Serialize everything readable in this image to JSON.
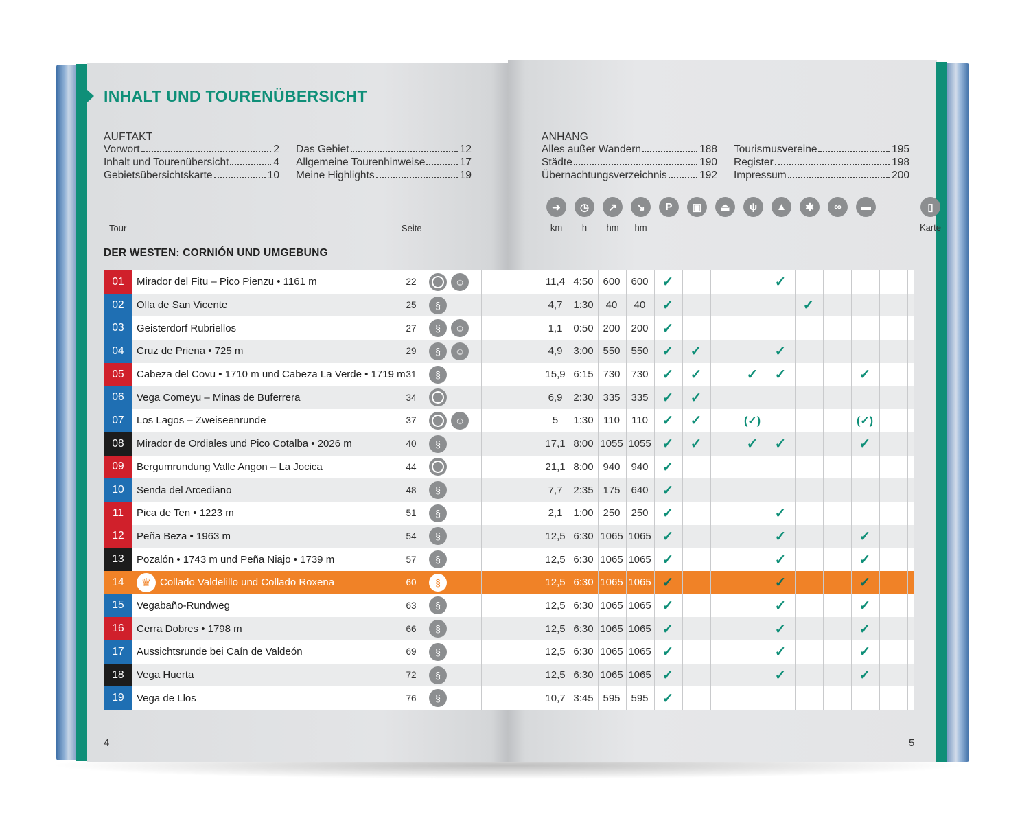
{
  "title": "INHALT UND TOURENÜBERSICHT",
  "toc_left": {
    "heading": "AUFTAKT",
    "col1": [
      {
        "label": "Vorwort",
        "page": "2"
      },
      {
        "label": "Inhalt und Tourenübersicht",
        "page": "4"
      },
      {
        "label": "Gebietsübersichtskarte",
        "page": "10"
      }
    ],
    "col2": [
      {
        "label": "Das Gebiet",
        "page": "12"
      },
      {
        "label": "Allgemeine Tourenhinweise",
        "page": "17"
      },
      {
        "label": "Meine Highlights",
        "page": "19"
      }
    ]
  },
  "toc_right": {
    "heading": "ANHANG",
    "col1": [
      {
        "label": "Alles außer Wandern",
        "page": "188"
      },
      {
        "label": "Städte",
        "page": "190"
      },
      {
        "label": "Übernachtungsverzeichnis",
        "page": "192"
      }
    ],
    "col2": [
      {
        "label": "Tourismusvereine",
        "page": "195"
      },
      {
        "label": "Register",
        "page": "198"
      },
      {
        "label": "Impressum",
        "page": "200"
      }
    ]
  },
  "col_tour": "Tour",
  "col_seite": "Seite",
  "col_karte": "Karte",
  "section_title": "DER WESTEN: CORNIÓN UND UMGEBUNG",
  "icon_headers": [
    {
      "icon": "signpost-icon",
      "glyph": "➜",
      "label": "km"
    },
    {
      "icon": "clock-icon",
      "glyph": "◷",
      "label": "h"
    },
    {
      "icon": "ascent-icon",
      "glyph": "↗",
      "label": "hm"
    },
    {
      "icon": "descent-icon",
      "glyph": "↘",
      "label": "hm"
    },
    {
      "icon": "parking-icon",
      "glyph": "P",
      "label": ""
    },
    {
      "icon": "bus-icon",
      "glyph": "▣",
      "label": ""
    },
    {
      "icon": "cable-car-icon",
      "glyph": "⏏",
      "label": ""
    },
    {
      "icon": "restaurant-icon",
      "glyph": "ψ",
      "label": ""
    },
    {
      "icon": "hut-icon",
      "glyph": "▲",
      "label": ""
    },
    {
      "icon": "winter-icon",
      "glyph": "✱",
      "label": ""
    },
    {
      "icon": "bike-icon",
      "glyph": "∞",
      "label": ""
    },
    {
      "icon": "bed-icon",
      "glyph": "▬",
      "label": ""
    },
    {
      "icon": "map-icon",
      "glyph": "▯",
      "label": "Karte"
    }
  ],
  "colors": {
    "green": "#0f8f78",
    "orange": "#f08227",
    "red": "#d0202b",
    "blue": "#1f6fb3",
    "black": "#1c1c1c"
  },
  "tours": [
    {
      "num": "01",
      "color": "#d0202b",
      "name": "Mirador del Fitu – Pico Pienzu • 1161 m",
      "page": "22",
      "icons": [
        "loop",
        "kids"
      ],
      "km": "11,4",
      "h": "4:50",
      "up": "600",
      "down": "600",
      "checks": [
        "✓",
        "",
        "",
        "",
        "✓",
        "",
        "",
        "",
        ""
      ]
    },
    {
      "num": "02",
      "color": "#1f6fb3",
      "name": "Olla de San Vicente",
      "page": "25",
      "icons": [
        "way"
      ],
      "km": "4,7",
      "h": "1:30",
      "up": "40",
      "down": "40",
      "checks": [
        "✓",
        "",
        "",
        "",
        "",
        "✓",
        "",
        "",
        ""
      ]
    },
    {
      "num": "03",
      "color": "#1f6fb3",
      "name": "Geisterdorf Rubriellos",
      "page": "27",
      "icons": [
        "way",
        "kids"
      ],
      "km": "1,1",
      "h": "0:50",
      "up": "200",
      "down": "200",
      "checks": [
        "✓",
        "",
        "",
        "",
        "",
        "",
        "",
        "",
        ""
      ]
    },
    {
      "num": "04",
      "color": "#1f6fb3",
      "name": "Cruz de Priena • 725 m",
      "page": "29",
      "icons": [
        "way",
        "kids"
      ],
      "km": "4,9",
      "h": "3:00",
      "up": "550",
      "down": "550",
      "checks": [
        "✓",
        "✓",
        "",
        "",
        "✓",
        "",
        "",
        "",
        ""
      ]
    },
    {
      "num": "05",
      "color": "#d0202b",
      "name": "Cabeza del Covu • 1710 m und Cabeza La Verde • 1719 m",
      "page": "31",
      "icons": [
        "way"
      ],
      "km": "15,9",
      "h": "6:15",
      "up": "730",
      "down": "730",
      "checks": [
        "✓",
        "✓",
        "",
        "✓",
        "✓",
        "",
        "",
        "✓",
        ""
      ]
    },
    {
      "num": "06",
      "color": "#1f6fb3",
      "name": "Vega Comeyu – Minas de Buferrera",
      "page": "34",
      "icons": [
        "loop"
      ],
      "km": "6,9",
      "h": "2:30",
      "up": "335",
      "down": "335",
      "checks": [
        "✓",
        "✓",
        "",
        "",
        "",
        "",
        "",
        "",
        ""
      ]
    },
    {
      "num": "07",
      "color": "#1f6fb3",
      "name": "Los Lagos – Zweiseenrunde",
      "page": "37",
      "icons": [
        "loop",
        "kids"
      ],
      "km": "5",
      "h": "1:30",
      "up": "110",
      "down": "110",
      "checks": [
        "✓",
        "✓",
        "",
        "(✓)",
        "",
        "",
        "",
        "(✓)",
        ""
      ]
    },
    {
      "num": "08",
      "color": "#1c1c1c",
      "name": "Mirador de Ordiales und Pico Cotalba • 2026 m",
      "page": "40",
      "icons": [
        "way"
      ],
      "km": "17,1",
      "h": "8:00",
      "up": "1055",
      "down": "1055",
      "checks": [
        "✓",
        "✓",
        "",
        "✓",
        "✓",
        "",
        "",
        "✓",
        ""
      ]
    },
    {
      "num": "09",
      "color": "#d0202b",
      "name": "Bergumrundung Valle Angon – La Jocica",
      "page": "44",
      "icons": [
        "loop"
      ],
      "km": "21,1",
      "h": "8:00",
      "up": "940",
      "down": "940",
      "checks": [
        "✓",
        "",
        "",
        "",
        "",
        "",
        "",
        "",
        ""
      ]
    },
    {
      "num": "10",
      "color": "#1f6fb3",
      "name": "Senda del Arcediano",
      "page": "48",
      "icons": [
        "way"
      ],
      "km": "7,7",
      "h": "2:35",
      "up": "175",
      "down": "640",
      "checks": [
        "✓",
        "",
        "",
        "",
        "",
        "",
        "",
        "",
        ""
      ]
    },
    {
      "num": "11",
      "color": "#d0202b",
      "name": "Pica de Ten • 1223 m",
      "page": "51",
      "icons": [
        "way"
      ],
      "km": "2,1",
      "h": "1:00",
      "up": "250",
      "down": "250",
      "checks": [
        "✓",
        "",
        "",
        "",
        "✓",
        "",
        "",
        "",
        ""
      ]
    },
    {
      "num": "12",
      "color": "#d0202b",
      "name": "Peña Beza • 1963 m",
      "page": "54",
      "icons": [
        "way"
      ],
      "km": "12,5",
      "h": "6:30",
      "up": "1065",
      "down": "1065",
      "checks": [
        "✓",
        "",
        "",
        "",
        "✓",
        "",
        "",
        "✓",
        ""
      ]
    },
    {
      "num": "13",
      "color": "#1c1c1c",
      "name": "Pozalón • 1743 m und Peña Niajo • 1739 m",
      "page": "57",
      "icons": [
        "way"
      ],
      "km": "12,5",
      "h": "6:30",
      "up": "1065",
      "down": "1065",
      "checks": [
        "✓",
        "",
        "",
        "",
        "✓",
        "",
        "",
        "✓",
        ""
      ]
    },
    {
      "num": "14",
      "color": "#f08227",
      "name": "Collado Valdelillo und Collado Roxena",
      "page": "60",
      "icons": [
        "way"
      ],
      "highlight": true,
      "km": "12,5",
      "h": "6:30",
      "up": "1065",
      "down": "1065",
      "checks": [
        "✓",
        "",
        "",
        "",
        "✓",
        "",
        "",
        "✓",
        ""
      ]
    },
    {
      "num": "15",
      "color": "#1f6fb3",
      "name": "Vegabaño-Rundweg",
      "page": "63",
      "icons": [
        "way"
      ],
      "km": "12,5",
      "h": "6:30",
      "up": "1065",
      "down": "1065",
      "checks": [
        "✓",
        "",
        "",
        "",
        "✓",
        "",
        "",
        "✓",
        ""
      ]
    },
    {
      "num": "16",
      "color": "#d0202b",
      "name": "Cerra Dobres • 1798 m",
      "page": "66",
      "icons": [
        "way"
      ],
      "km": "12,5",
      "h": "6:30",
      "up": "1065",
      "down": "1065",
      "checks": [
        "✓",
        "",
        "",
        "",
        "✓",
        "",
        "",
        "✓",
        ""
      ]
    },
    {
      "num": "17",
      "color": "#1f6fb3",
      "name": "Aussichtsrunde bei Caín de Valdeón",
      "page": "69",
      "icons": [
        "way"
      ],
      "km": "12,5",
      "h": "6:30",
      "up": "1065",
      "down": "1065",
      "checks": [
        "✓",
        "",
        "",
        "",
        "✓",
        "",
        "",
        "✓",
        ""
      ]
    },
    {
      "num": "18",
      "color": "#1c1c1c",
      "name": "Vega Huerta",
      "page": "72",
      "icons": [
        "way"
      ],
      "km": "12,5",
      "h": "6:30",
      "up": "1065",
      "down": "1065",
      "checks": [
        "✓",
        "",
        "",
        "",
        "✓",
        "",
        "",
        "✓",
        ""
      ]
    },
    {
      "num": "19",
      "color": "#1f6fb3",
      "name": "Vega de Llos",
      "page": "76",
      "icons": [
        "way"
      ],
      "km": "10,7",
      "h": "3:45",
      "up": "595",
      "down": "595",
      "checks": [
        "✓",
        "",
        "",
        "",
        "",
        "",
        "",
        "",
        ""
      ]
    }
  ],
  "page_left": "4",
  "page_right": "5"
}
